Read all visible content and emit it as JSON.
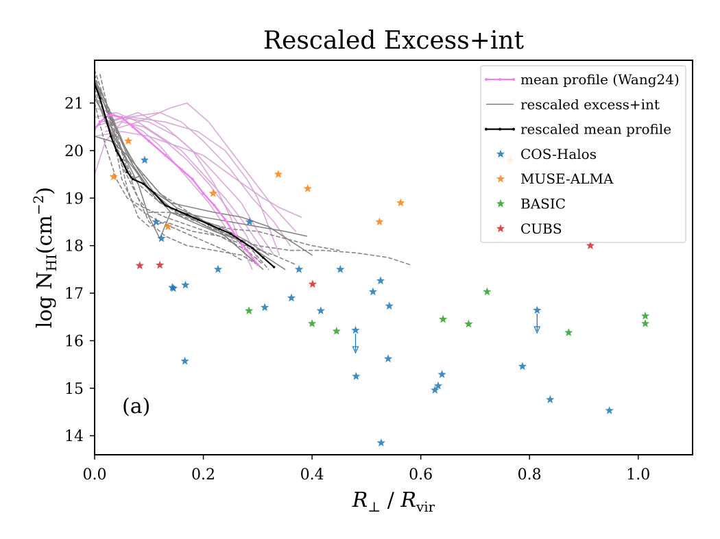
{
  "chart_data": {
    "type": "scatter",
    "title": "Rescaled Excess+int",
    "xlabel": "R⊥ / Rvir",
    "ylabel": "log N_HI(cm^-2)",
    "xlim": [
      0.0,
      1.1
    ],
    "ylim": [
      13.6,
      21.9
    ],
    "xticks": [
      "0.0",
      "0.2",
      "0.4",
      "0.6",
      "0.8",
      "1.0"
    ],
    "yticks": [
      "14",
      "15",
      "16",
      "17",
      "18",
      "19",
      "20",
      "21"
    ],
    "panel_label": "(a)",
    "legend_position": "top-right",
    "colors": {
      "mean_wang24": "#ee82ee",
      "pink_curves": "#d4a0d4",
      "excess_int": "#808080",
      "rescaled_mean": "#000000",
      "cos_halos": "#1f77b4",
      "muse_alma": "#ff7f0e",
      "basic": "#2ca02c",
      "cubs": "#d62728"
    },
    "legend": [
      {
        "key": "mean_wang24",
        "label": "mean profile (Wang24)",
        "kind": "line-dot"
      },
      {
        "key": "excess_int",
        "label": "rescaled excess+int",
        "kind": "line"
      },
      {
        "key": "rescaled_mean",
        "label": "rescaled mean profile",
        "kind": "line-dot"
      },
      {
        "key": "cos_halos",
        "label": "COS-Halos",
        "kind": "star"
      },
      {
        "key": "muse_alma",
        "label": "MUSE-ALMA",
        "kind": "star"
      },
      {
        "key": "basic",
        "label": "BASIC",
        "kind": "star"
      },
      {
        "key": "cubs",
        "label": "CUBS",
        "kind": "star"
      }
    ],
    "mean_profile_wang24": [
      [
        0.0,
        20.45
      ],
      [
        0.01,
        20.6
      ],
      [
        0.02,
        20.7
      ],
      [
        0.03,
        20.75
      ],
      [
        0.05,
        20.7
      ],
      [
        0.07,
        20.5
      ],
      [
        0.1,
        20.2
      ],
      [
        0.13,
        19.9
      ],
      [
        0.16,
        19.6
      ],
      [
        0.18,
        19.4
      ],
      [
        0.2,
        19.1
      ],
      [
        0.22,
        18.85
      ],
      [
        0.24,
        18.55
      ],
      [
        0.26,
        18.2
      ],
      [
        0.28,
        17.9
      ],
      [
        0.3,
        17.6
      ]
    ],
    "rescaled_mean_profile": [
      [
        0.0,
        21.4
      ],
      [
        0.01,
        21.1
      ],
      [
        0.02,
        20.7
      ],
      [
        0.03,
        20.3
      ],
      [
        0.04,
        20.0
      ],
      [
        0.05,
        19.8
      ],
      [
        0.06,
        19.55
      ],
      [
        0.07,
        19.4
      ],
      [
        0.09,
        19.3
      ],
      [
        0.11,
        19.1
      ],
      [
        0.13,
        18.85
      ],
      [
        0.15,
        18.75
      ],
      [
        0.17,
        18.65
      ],
      [
        0.19,
        18.55
      ],
      [
        0.21,
        18.45
      ],
      [
        0.23,
        18.35
      ],
      [
        0.25,
        18.25
      ],
      [
        0.27,
        18.1
      ],
      [
        0.29,
        17.95
      ],
      [
        0.31,
        17.75
      ],
      [
        0.33,
        17.55
      ]
    ],
    "pink_curves": [
      [
        [
          0.0,
          20.9
        ],
        [
          0.03,
          20.8
        ],
        [
          0.06,
          20.6
        ],
        [
          0.09,
          20.4
        ],
        [
          0.12,
          20.1
        ],
        [
          0.15,
          19.7
        ],
        [
          0.18,
          19.3
        ],
        [
          0.21,
          18.9
        ],
        [
          0.24,
          18.4
        ],
        [
          0.26,
          18.0
        ]
      ],
      [
        [
          0.0,
          20.7
        ],
        [
          0.04,
          20.8
        ],
        [
          0.08,
          20.6
        ],
        [
          0.12,
          20.3
        ],
        [
          0.16,
          20.0
        ],
        [
          0.2,
          19.5
        ],
        [
          0.24,
          19.0
        ],
        [
          0.28,
          18.4
        ],
        [
          0.31,
          17.9
        ]
      ],
      [
        [
          0.0,
          20.5
        ],
        [
          0.05,
          20.7
        ],
        [
          0.1,
          20.6
        ],
        [
          0.15,
          20.3
        ],
        [
          0.19,
          19.9
        ],
        [
          0.23,
          19.4
        ],
        [
          0.27,
          18.9
        ],
        [
          0.3,
          18.3
        ],
        [
          0.33,
          17.8
        ]
      ],
      [
        [
          0.01,
          20.6
        ],
        [
          0.06,
          20.7
        ],
        [
          0.12,
          20.8
        ],
        [
          0.16,
          20.6
        ],
        [
          0.2,
          20.2
        ],
        [
          0.25,
          19.6
        ],
        [
          0.29,
          19.0
        ],
        [
          0.33,
          18.5
        ],
        [
          0.36,
          18.0
        ]
      ],
      [
        [
          0.02,
          20.4
        ],
        [
          0.08,
          20.6
        ],
        [
          0.14,
          20.9
        ],
        [
          0.17,
          21.0
        ],
        [
          0.21,
          20.6
        ],
        [
          0.25,
          20.0
        ],
        [
          0.29,
          19.4
        ],
        [
          0.33,
          18.8
        ],
        [
          0.37,
          18.3
        ]
      ],
      [
        [
          0.0,
          20.3
        ],
        [
          0.05,
          20.4
        ],
        [
          0.1,
          20.3
        ],
        [
          0.15,
          20.1
        ],
        [
          0.2,
          19.9
        ],
        [
          0.26,
          19.4
        ],
        [
          0.31,
          19.0
        ],
        [
          0.34,
          18.8
        ],
        [
          0.38,
          18.6
        ]
      ],
      [
        [
          0.02,
          20.5
        ],
        [
          0.07,
          20.7
        ],
        [
          0.13,
          20.6
        ],
        [
          0.19,
          20.4
        ],
        [
          0.24,
          20.0
        ],
        [
          0.28,
          19.4
        ],
        [
          0.3,
          19.0
        ],
        [
          0.32,
          18.4
        ],
        [
          0.34,
          17.8
        ]
      ],
      [
        [
          0.03,
          20.6
        ],
        [
          0.08,
          20.8
        ],
        [
          0.13,
          20.5
        ],
        [
          0.18,
          20.0
        ],
        [
          0.22,
          19.3
        ],
        [
          0.25,
          18.6
        ],
        [
          0.27,
          18.0
        ],
        [
          0.29,
          17.5
        ]
      ],
      [
        [
          0.0,
          19.5
        ],
        [
          0.02,
          20.2
        ],
        [
          0.05,
          20.6
        ],
        [
          0.09,
          20.5
        ],
        [
          0.13,
          20.2
        ],
        [
          0.17,
          19.8
        ],
        [
          0.21,
          19.3
        ],
        [
          0.25,
          18.7
        ],
        [
          0.28,
          18.2
        ],
        [
          0.3,
          17.7
        ]
      ]
    ],
    "excess_solid_curves": [
      [
        [
          0.0,
          21.5
        ],
        [
          0.02,
          20.9
        ],
        [
          0.05,
          20.2
        ],
        [
          0.08,
          19.6
        ],
        [
          0.11,
          19.1
        ],
        [
          0.14,
          18.7
        ],
        [
          0.18,
          18.5
        ],
        [
          0.22,
          18.3
        ],
        [
          0.27,
          18.1
        ],
        [
          0.31,
          17.8
        ],
        [
          0.35,
          17.5
        ]
      ],
      [
        [
          0.0,
          21.4
        ],
        [
          0.03,
          20.7
        ],
        [
          0.06,
          19.9
        ],
        [
          0.09,
          19.3
        ],
        [
          0.12,
          18.9
        ],
        [
          0.16,
          18.7
        ],
        [
          0.2,
          18.6
        ],
        [
          0.25,
          18.5
        ],
        [
          0.3,
          18.4
        ],
        [
          0.35,
          18.3
        ],
        [
          0.39,
          18.2
        ]
      ],
      [
        [
          0.0,
          20.3
        ],
        [
          0.03,
          20.2
        ],
        [
          0.06,
          19.9
        ],
        [
          0.09,
          19.5
        ],
        [
          0.12,
          19.1
        ],
        [
          0.15,
          18.8
        ],
        [
          0.19,
          18.6
        ],
        [
          0.23,
          18.3
        ],
        [
          0.27,
          17.9
        ],
        [
          0.3,
          17.6
        ]
      ],
      [
        [
          0.0,
          21.2
        ],
        [
          0.02,
          20.6
        ],
        [
          0.05,
          20.0
        ],
        [
          0.08,
          19.3
        ],
        [
          0.1,
          18.6
        ],
        [
          0.12,
          18.15
        ],
        [
          0.14,
          18.7
        ],
        [
          0.18,
          18.6
        ],
        [
          0.23,
          18.4
        ],
        [
          0.28,
          18.1
        ],
        [
          0.32,
          17.8
        ]
      ],
      [
        [
          0.01,
          21.3
        ],
        [
          0.04,
          20.5
        ],
        [
          0.07,
          19.7
        ],
        [
          0.1,
          19.2
        ],
        [
          0.14,
          18.9
        ],
        [
          0.18,
          18.8
        ],
        [
          0.22,
          18.7
        ],
        [
          0.27,
          18.6
        ],
        [
          0.32,
          18.4
        ],
        [
          0.36,
          18.1
        ],
        [
          0.4,
          17.8
        ]
      ],
      [
        [
          0.0,
          21.1
        ],
        [
          0.03,
          20.5
        ],
        [
          0.06,
          19.8
        ],
        [
          0.1,
          19.2
        ],
        [
          0.14,
          18.8
        ],
        [
          0.19,
          18.5
        ],
        [
          0.24,
          18.2
        ],
        [
          0.28,
          17.8
        ],
        [
          0.31,
          17.5
        ]
      ]
    ],
    "excess_dashed_curves": [
      [
        [
          0.0,
          21.7
        ],
        [
          0.02,
          21.0
        ],
        [
          0.04,
          20.3
        ],
        [
          0.06,
          19.6
        ],
        [
          0.08,
          19.0
        ],
        [
          0.1,
          18.5
        ],
        [
          0.13,
          18.2
        ],
        [
          0.17,
          18.0
        ],
        [
          0.22,
          17.9
        ],
        [
          0.27,
          17.8
        ],
        [
          0.3,
          17.6
        ]
      ],
      [
        [
          0.0,
          21.6
        ],
        [
          0.02,
          20.9
        ],
        [
          0.04,
          20.2
        ],
        [
          0.06,
          19.2
        ],
        [
          0.08,
          18.6
        ],
        [
          0.1,
          18.4
        ],
        [
          0.13,
          18.5
        ],
        [
          0.18,
          18.3
        ],
        [
          0.23,
          18.2
        ],
        [
          0.28,
          17.9
        ],
        [
          0.31,
          17.6
        ]
      ],
      [
        [
          0.0,
          21.5
        ],
        [
          0.03,
          20.8
        ],
        [
          0.05,
          20.0
        ],
        [
          0.07,
          19.4
        ],
        [
          0.09,
          19.5
        ],
        [
          0.12,
          19.1
        ],
        [
          0.16,
          18.8
        ],
        [
          0.2,
          18.5
        ],
        [
          0.25,
          18.2
        ],
        [
          0.29,
          17.9
        ],
        [
          0.32,
          17.5
        ]
      ],
      [
        [
          0.01,
          21.6
        ],
        [
          0.03,
          20.6
        ],
        [
          0.05,
          19.4
        ],
        [
          0.07,
          18.9
        ],
        [
          0.09,
          18.7
        ],
        [
          0.12,
          18.5
        ],
        [
          0.16,
          18.3
        ],
        [
          0.2,
          18.1
        ],
        [
          0.24,
          17.9
        ],
        [
          0.27,
          17.7
        ]
      ],
      [
        [
          0.0,
          21.3
        ],
        [
          0.03,
          20.4
        ],
        [
          0.05,
          19.7
        ],
        [
          0.08,
          19.0
        ],
        [
          0.1,
          18.7
        ],
        [
          0.14,
          18.7
        ],
        [
          0.19,
          18.5
        ],
        [
          0.25,
          18.2
        ],
        [
          0.3,
          18.0
        ],
        [
          0.36,
          17.9
        ],
        [
          0.42,
          17.9
        ],
        [
          0.48,
          17.85
        ],
        [
          0.54,
          17.75
        ],
        [
          0.58,
          17.6
        ]
      ],
      [
        [
          0.0,
          21.0
        ],
        [
          0.02,
          20.1
        ],
        [
          0.04,
          19.4
        ],
        [
          0.06,
          19.0
        ],
        [
          0.09,
          18.8
        ],
        [
          0.13,
          18.6
        ],
        [
          0.18,
          18.4
        ],
        [
          0.23,
          18.2
        ],
        [
          0.28,
          18.0
        ],
        [
          0.33,
          17.8
        ],
        [
          0.37,
          17.6
        ]
      ],
      [
        [
          0.0,
          21.5
        ],
        [
          0.02,
          20.7
        ],
        [
          0.05,
          19.8
        ],
        [
          0.08,
          19.3
        ],
        [
          0.11,
          19.0
        ],
        [
          0.15,
          18.7
        ],
        [
          0.2,
          18.5
        ],
        [
          0.25,
          18.35
        ],
        [
          0.3,
          18.3
        ],
        [
          0.35,
          18.15
        ],
        [
          0.4,
          18.0
        ],
        [
          0.45,
          17.9
        ]
      ]
    ],
    "cos_halos": [
      [
        0.092,
        19.8
      ],
      [
        0.113,
        18.5
      ],
      [
        0.123,
        18.15
      ],
      [
        0.143,
        17.12
      ],
      [
        0.145,
        17.1
      ],
      [
        0.167,
        17.17
      ],
      [
        0.166,
        15.57
      ],
      [
        0.227,
        17.5
      ],
      [
        0.285,
        18.5
      ],
      [
        0.313,
        16.7
      ],
      [
        0.362,
        16.9
      ],
      [
        0.376,
        17.5
      ],
      [
        0.416,
        16.63
      ],
      [
        0.452,
        17.5
      ],
      [
        0.48,
        16.22
      ],
      [
        0.481,
        15.25
      ],
      [
        0.512,
        17.03
      ],
      [
        0.526,
        17.26
      ],
      [
        0.527,
        13.85
      ],
      [
        0.542,
        16.73
      ],
      [
        0.54,
        15.62
      ],
      [
        0.626,
        14.96
      ],
      [
        0.632,
        15.05
      ],
      [
        0.639,
        15.29
      ],
      [
        0.787,
        15.46
      ],
      [
        0.814,
        16.64
      ],
      [
        0.838,
        14.76
      ],
      [
        0.947,
        14.53
      ]
    ],
    "upper_limits": [
      [
        0.48,
        16.22
      ],
      [
        0.814,
        16.64
      ]
    ],
    "muse_alma": [
      [
        0.035,
        19.45
      ],
      [
        0.062,
        20.2
      ],
      [
        0.135,
        18.4
      ],
      [
        0.218,
        19.1
      ],
      [
        0.338,
        19.5
      ],
      [
        0.392,
        19.2
      ],
      [
        0.524,
        18.5
      ],
      [
        0.563,
        18.9
      ],
      [
        0.765,
        19.8
      ]
    ],
    "basic": [
      [
        0.284,
        16.63
      ],
      [
        0.4,
        16.36
      ],
      [
        0.445,
        16.2
      ],
      [
        0.641,
        16.45
      ],
      [
        0.688,
        16.35
      ],
      [
        0.722,
        17.03
      ],
      [
        0.872,
        16.17
      ],
      [
        1.013,
        16.52
      ],
      [
        1.013,
        16.36
      ]
    ],
    "cubs": [
      [
        0.083,
        17.58
      ],
      [
        0.12,
        17.59
      ],
      [
        0.401,
        17.19
      ],
      [
        0.912,
        18.0
      ]
    ]
  }
}
